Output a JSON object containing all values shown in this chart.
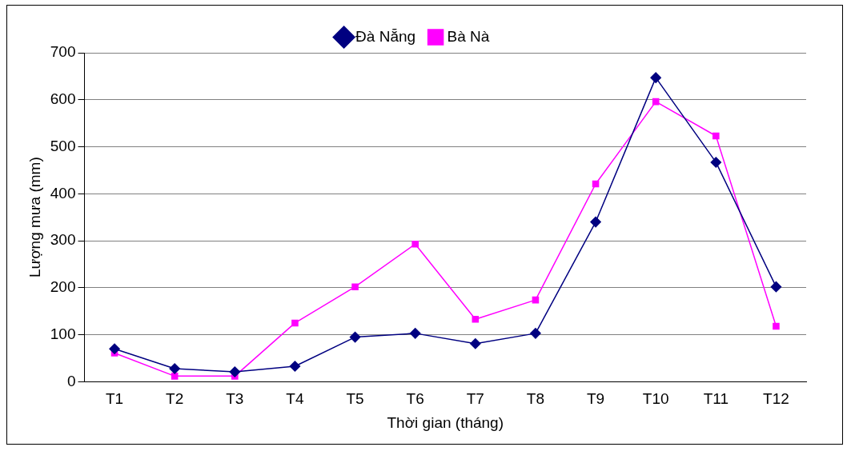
{
  "chart_data": {
    "type": "line",
    "xlabel": "Thời gian (tháng)",
    "ylabel": "Lượng mưa (mm)",
    "categories": [
      "T1",
      "T2",
      "T3",
      "T4",
      "T5",
      "T6",
      "T7",
      "T8",
      "T9",
      "T10",
      "T11",
      "T12"
    ],
    "series": [
      {
        "name": "Đà Nẵng",
        "color": "#000080",
        "marker": "diamond",
        "values": [
          70,
          28,
          21,
          33,
          95,
          103,
          81,
          103,
          340,
          647,
          467,
          202
        ]
      },
      {
        "name": "Bà Nà",
        "color": "#ff00ff",
        "marker": "square",
        "values": [
          61,
          12,
          12,
          125,
          202,
          293,
          133,
          174,
          421,
          596,
          523,
          118
        ]
      }
    ],
    "ylim": [
      0,
      700
    ],
    "yticks": [
      0,
      100,
      200,
      300,
      400,
      500,
      600,
      700
    ],
    "grid": "y",
    "legend": "top",
    "line_style": "solid"
  }
}
